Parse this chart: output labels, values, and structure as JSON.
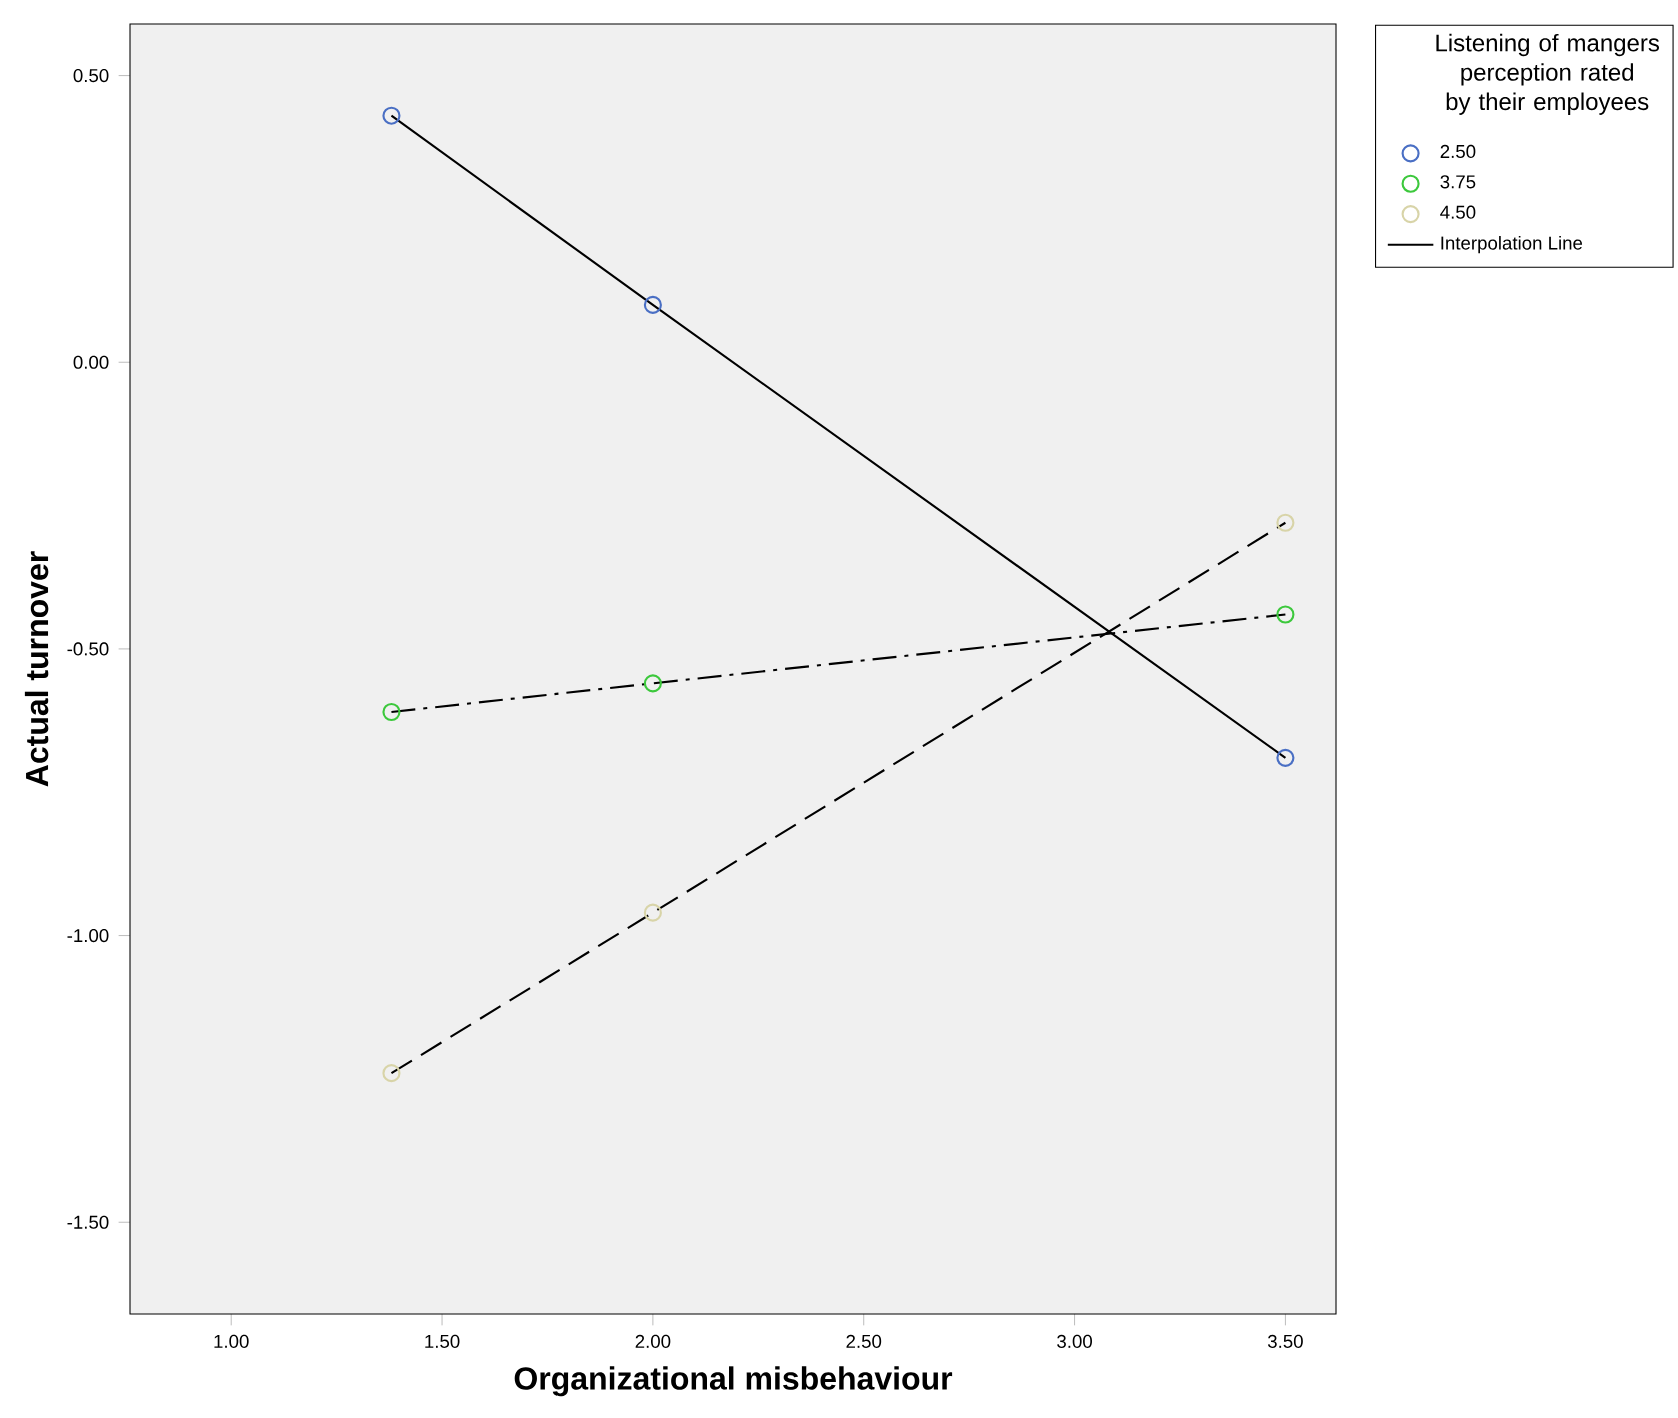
{
  "chart_data": {
    "type": "line",
    "xlabel": "Organizational misbehaviour",
    "ylabel": "Actual turnover",
    "legend_title": "Listening of mangers perception rated by their employees",
    "x": [
      1.38,
      2.0,
      3.5
    ],
    "series": [
      {
        "name": "2.50",
        "color": "#4a6fc4",
        "values": [
          0.43,
          0.1,
          -0.69
        ],
        "line_style": "solid"
      },
      {
        "name": "3.75",
        "color": "#3cc83c",
        "values": [
          -0.61,
          -0.56,
          -0.44
        ],
        "line_style": "dashdot"
      },
      {
        "name": "4.50",
        "color": "#d8d4a8",
        "values": [
          -1.24,
          -0.96,
          -0.28
        ],
        "line_style": "dashed"
      }
    ],
    "annotations": [
      "Interpolation Line"
    ],
    "marker": "circle",
    "legend": "top right",
    "grid": false,
    "xlim": [
      0.76,
      3.62
    ],
    "ylim": [
      -1.66,
      0.59
    ],
    "xticks": [
      {
        "value": 1.0,
        "label": "1.00"
      },
      {
        "value": 1.5,
        "label": "1.50"
      },
      {
        "value": 2.0,
        "label": "2.00"
      },
      {
        "value": 2.5,
        "label": "2.50"
      },
      {
        "value": 3.0,
        "label": "3.00"
      },
      {
        "value": 3.5,
        "label": "3.50"
      }
    ],
    "yticks": [
      {
        "value": 0.5,
        "label": "0.50"
      },
      {
        "value": 0.0,
        "label": "0.00"
      },
      {
        "value": -0.5,
        "label": "-0.50"
      },
      {
        "value": -1.0,
        "label": "-1.00"
      },
      {
        "value": -1.5,
        "label": "-1.50"
      }
    ]
  }
}
